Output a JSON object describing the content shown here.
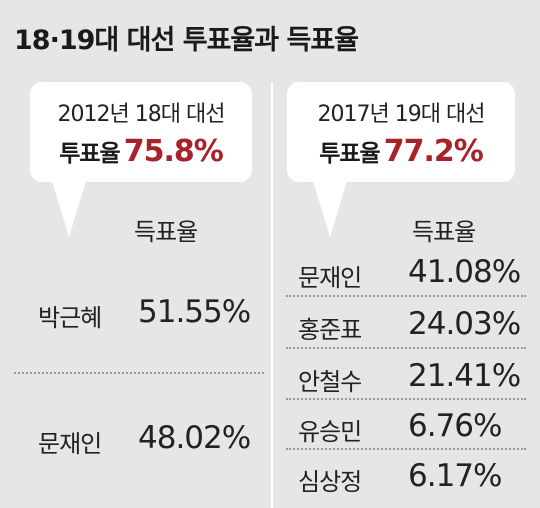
{
  "title": "18·19대 대선 투표율과 득표율",
  "left": {
    "election": "2012년 18대 대선",
    "turnout_label": "투표율",
    "turnout_value": "75.8%",
    "header": "득표율",
    "rows": [
      {
        "name": "박근혜",
        "value": "51.55%"
      },
      {
        "name": "문재인",
        "value": "48.02%"
      }
    ]
  },
  "right": {
    "election": "2017년 19대 대선",
    "turnout_label": "투표율",
    "turnout_value": "77.2%",
    "header": "득표율",
    "rows": [
      {
        "name": "문재인",
        "value": "41.08%"
      },
      {
        "name": "홍준표",
        "value": "24.03%"
      },
      {
        "name": "안철수",
        "value": "21.41%"
      },
      {
        "name": "유승민",
        "value": "6.76%"
      },
      {
        "name": "심상정",
        "value": "6.17%"
      }
    ]
  },
  "colors": {
    "background": "#e6e6e6",
    "accent": "#a8222a",
    "panel": "#ffffff"
  }
}
